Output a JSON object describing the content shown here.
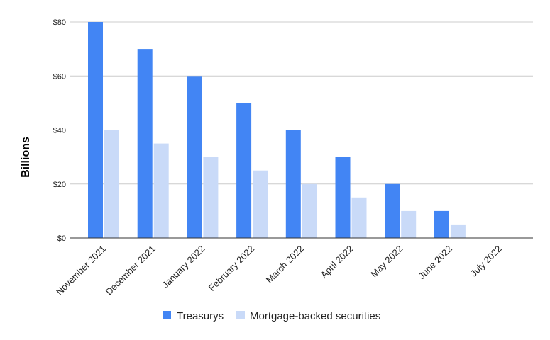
{
  "chart_data": {
    "type": "bar",
    "categories": [
      "November 2021",
      "December 2021",
      "January 2022",
      "February 2022",
      "March 2022",
      "April 2022",
      "May 2022",
      "June 2022",
      "July 2022"
    ],
    "series": [
      {
        "name": "Treasurys",
        "color": "#4285f4",
        "values": [
          80,
          70,
          60,
          50,
          40,
          30,
          20,
          10,
          0
        ]
      },
      {
        "name": "Mortgage-backed securities",
        "color": "#c9daf8",
        "values": [
          40,
          35,
          30,
          25,
          20,
          15,
          10,
          5,
          0
        ]
      }
    ],
    "ylabel": "Billions",
    "ylim": [
      0,
      80
    ],
    "yticks": [
      0,
      20,
      40,
      60,
      80
    ],
    "ytick_labels": [
      "$0",
      "$20",
      "$40",
      "$60",
      "$80"
    ],
    "grid": true,
    "legend_position": "bottom"
  }
}
